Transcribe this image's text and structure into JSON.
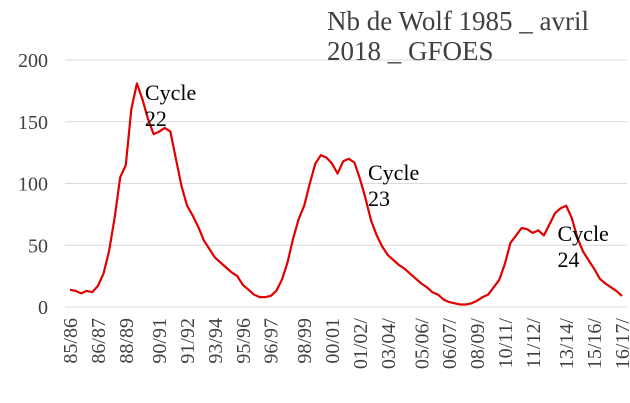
{
  "chart_data": {
    "type": "line",
    "title": "Nb de Wolf 1985 _ avril 2018 _ GFOES",
    "categories": [
      "85/86",
      null,
      null,
      null,
      null,
      "86/87",
      null,
      null,
      null,
      null,
      "88/89",
      null,
      null,
      null,
      null,
      null,
      "90/91",
      null,
      null,
      null,
      null,
      "91/92",
      null,
      null,
      null,
      null,
      "93/94",
      null,
      null,
      null,
      null,
      "95/96",
      null,
      null,
      null,
      null,
      "96/97",
      null,
      null,
      null,
      null,
      null,
      "98/99",
      null,
      null,
      null,
      null,
      "00/01",
      null,
      null,
      null,
      null,
      "01/02/",
      null,
      null,
      null,
      null,
      "03/04/",
      null,
      null,
      null,
      null,
      null,
      "05/06/",
      null,
      null,
      null,
      null,
      "06/07/",
      null,
      null,
      null,
      null,
      "08/09/",
      null,
      null,
      null,
      null,
      "10/11/",
      null,
      null,
      null,
      null,
      "11/12/",
      null,
      null,
      null,
      null,
      null,
      "13/14/",
      null,
      null,
      null,
      null,
      "15/16/",
      null,
      null,
      null,
      null,
      "16/17/"
    ],
    "series": [
      {
        "name": "Nb de Wolf",
        "color": "#e00000",
        "values": [
          14,
          13,
          11,
          13,
          12,
          17,
          27,
          45,
          72,
          105,
          115,
          160,
          181,
          168,
          152,
          140,
          142,
          145,
          142,
          120,
          98,
          82,
          74,
          65,
          54,
          47,
          40,
          36,
          32,
          28,
          25,
          18,
          14,
          10,
          8,
          8,
          9,
          13,
          22,
          36,
          55,
          71,
          82,
          100,
          116,
          123,
          121,
          116,
          108,
          118,
          120,
          117,
          104,
          88,
          70,
          58,
          49,
          42,
          38,
          34,
          31,
          27,
          23,
          19,
          16,
          12,
          10,
          6,
          4,
          3,
          2,
          2,
          3,
          5,
          8,
          10,
          16,
          22,
          35,
          52,
          58,
          64,
          63,
          60,
          62,
          58,
          67,
          76,
          80,
          82,
          72,
          56,
          45,
          38,
          31,
          23,
          19,
          16,
          13,
          9
        ]
      }
    ],
    "ylim": [
      0,
      200
    ],
    "yticks": [
      0,
      50,
      100,
      150,
      200
    ],
    "grid": true,
    "annotations": [
      {
        "text": "Cycle 22",
        "x": 12,
        "y": 181
      },
      {
        "text": "Cycle 23",
        "x": 52,
        "y": 117
      },
      {
        "text": "Cycle 24",
        "x": 86,
        "y": 67
      }
    ]
  }
}
